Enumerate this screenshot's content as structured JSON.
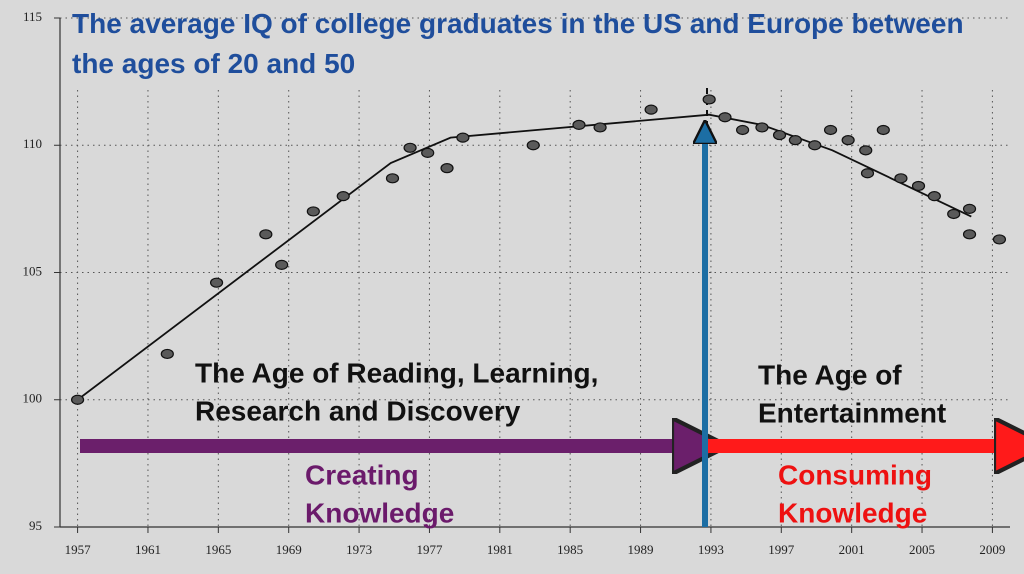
{
  "chart_data": {
    "type": "scatter",
    "title": "The average IQ of college graduates in the US and Europe between the ages of 20 and 50",
    "xlim": [
      1956,
      2010
    ],
    "ylim": [
      95,
      115
    ],
    "xticks": [
      1957,
      1961,
      1965,
      1969,
      1973,
      1977,
      1981,
      1985,
      1989,
      1993,
      1997,
      2001,
      2005,
      2009
    ],
    "yticks": [
      95,
      100,
      105,
      110,
      115
    ],
    "grid": true,
    "color": "#5a5a5a",
    "x": [
      1957,
      1962.1,
      1964.9,
      1967.7,
      1968.6,
      1970.4,
      1972.1,
      1974.9,
      1975.9,
      1976.9,
      1978,
      1978.9,
      1982.9,
      1985.5,
      1986.7,
      1989.6,
      1992.9,
      1993.8,
      1994.8,
      1995.9,
      1996.9,
      1997.8,
      1998.9,
      1999.8,
      2000.8,
      2001.8,
      2001.9,
      2002.8,
      2003.8,
      2004.8,
      2005.7,
      2006.8,
      2007.7,
      2007.7,
      2009.4
    ],
    "values": [
      100.0,
      101.8,
      104.6,
      106.5,
      105.3,
      107.4,
      108.0,
      108.7,
      109.9,
      109.7,
      109.1,
      110.3,
      110.0,
      110.8,
      110.7,
      111.4,
      111.8,
      111.1,
      110.6,
      110.7,
      110.4,
      110.2,
      110.0,
      110.6,
      110.2,
      109.8,
      108.9,
      110.6,
      108.7,
      108.4,
      108.0,
      107.3,
      107.5,
      106.5,
      106.3
    ],
    "trend_line": {
      "color": "#111111",
      "x": [
        1957,
        1974.8,
        1978.2,
        1992.9,
        1995.9,
        1999.9,
        2007.8
      ],
      "values": [
        100.0,
        109.3,
        110.3,
        111.2,
        110.8,
        109.8,
        107.2
      ]
    },
    "annotations": [
      {
        "lines": [
          "The Age of Reading, Learning,",
          "Research and Discovery"
        ],
        "color": "#111111"
      },
      {
        "lines": [
          "The Age of",
          "Entertainment"
        ],
        "color": "#111111"
      },
      {
        "lines": [
          "Creating",
          "Knowledge"
        ],
        "color": "#6b1a6b"
      },
      {
        "lines": [
          "Consuming",
          "Knowledge"
        ],
        "color": "#ee1111"
      }
    ]
  }
}
